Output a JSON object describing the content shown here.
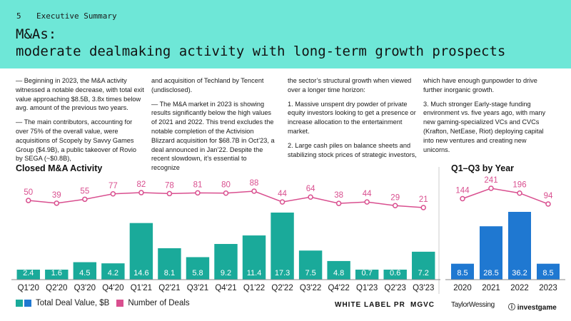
{
  "header": {
    "page_number": "5",
    "section": "Executive Summary",
    "title_line1": "M&As:",
    "title_line2": "moderate dealmaking activity with long-term growth prospects"
  },
  "columns": [
    [
      "— Beginning in 2023, the M&A activity witnessed a notable decrease, with total exit value approaching $8.5B, 3.8x times below avg. amount of the previous two years.",
      "— The main contributors, accounting for over 75% of the overall value, were acquisitions of Scopely by Savvy Games Group ($4.9B), a public takeover of Rovio by SEGA (~$0.8B),"
    ],
    [
      "and acquisition of Techland by Tencent (undisclosed).",
      "— The M&A market in 2023 is showing results significantly below the high values of 2021 and 2022. This trend excludes the notable completion of the Activision Blizzard acquisition for $68.7B in Oct’23, a deal announced in Jan’22. Despite the recent slowdown, it’s essential to recognize"
    ],
    [
      "the sector’s structural growth when viewed over a longer time horizon:",
      "1. Massive unspent dry powder of private equity investors looking to get a presence or increase allocation to the entertainment market.",
      "2. Large cash piles on balance sheets and stabilizing stock prices of strategic investors,"
    ],
    [
      "which have enough gunpowder to drive further inorganic growth.",
      "3. Much stronger Early-stage funding environment vs. five years ago, with many new gaming-specialized VCs and CVCs (Krafton, NetEase, Riot) deploying capital into new ventures and creating new unicorns."
    ]
  ],
  "legend": {
    "value_label": "Total Deal Value, $B",
    "deals_label": "Number of Deals"
  },
  "colors": {
    "header_bg": "#6ee7d7",
    "bar_quarterly": "#1aaa9a",
    "bar_yearly": "#1f78d1",
    "line": "#d94f8f"
  },
  "logos": {
    "white_label": "WHITE LABEL PR",
    "mgvc": "MGVC",
    "taylor_wessing": "TaylorWessing",
    "investgame": "investgame"
  },
  "chart_data": [
    {
      "type": "bar",
      "title": "Closed M&A Activity",
      "categories": [
        "Q1'20",
        "Q2'20",
        "Q3'20",
        "Q4'20",
        "Q1'21",
        "Q2'21",
        "Q3'21",
        "Q4'21",
        "Q1'22",
        "Q2'22",
        "Q3'22",
        "Q4'22",
        "Q1'23",
        "Q2'23",
        "Q3'23"
      ],
      "series": [
        {
          "name": "Total Deal Value, $B",
          "type": "bar",
          "values": [
            2.4,
            1.6,
            4.5,
            4.2,
            14.6,
            8.1,
            5.8,
            9.2,
            11.4,
            17.3,
            7.5,
            4.8,
            0.7,
            0.6,
            7.2
          ]
        },
        {
          "name": "Number of Deals",
          "type": "line",
          "values": [
            50,
            39,
            55,
            77,
            82,
            78,
            81,
            80,
            88,
            44,
            64,
            38,
            44,
            29,
            21
          ]
        }
      ],
      "bar_ylim": [
        0,
        17.3
      ],
      "line_ylim": [
        21,
        88
      ]
    },
    {
      "type": "bar",
      "title": "Q1–Q3 by Year",
      "categories": [
        "2020",
        "2021",
        "2022",
        "2023"
      ],
      "series": [
        {
          "name": "Total Deal Value, $B",
          "type": "bar",
          "values": [
            8.5,
            28.5,
            36.2,
            8.5
          ]
        },
        {
          "name": "Number of Deals",
          "type": "line",
          "values": [
            144,
            241,
            196,
            94
          ]
        }
      ],
      "bar_ylim": [
        0,
        36.2
      ],
      "line_ylim": [
        94,
        241
      ]
    }
  ]
}
